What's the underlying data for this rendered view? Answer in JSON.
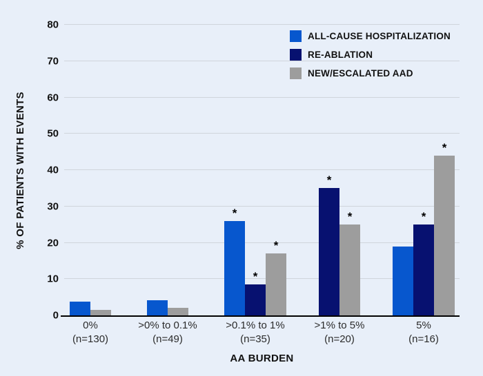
{
  "colors": {
    "background": "#e8eff9",
    "gridline": "#cfd4db",
    "axis_line": "#000000",
    "text": "#111111"
  },
  "chart_data": {
    "type": "bar",
    "title": "",
    "xlabel": "AA BURDEN",
    "ylabel": "% OF PATIENTS WITH EVENTS",
    "ylim": [
      0,
      80
    ],
    "yticks": [
      0,
      10,
      20,
      30,
      40,
      50,
      60,
      70,
      80
    ],
    "grid": "horizontal",
    "legend_position": "top-right-inside",
    "annotation_marker": "*",
    "categories": [
      {
        "range": "0%",
        "n": "(n=130)"
      },
      {
        "range": ">0% to 0.1%",
        "n": "(n=49)"
      },
      {
        "range": ">0.1% to 1%",
        "n": "(n=35)"
      },
      {
        "range": ">1% to 5%",
        "n": "(n=20)"
      },
      {
        "range": "5%",
        "n": "(n=16)"
      }
    ],
    "series": [
      {
        "name": "ALL-CAUSE HOSPITALIZATION",
        "color": "#0757ce",
        "values": [
          3.8,
          4.1,
          26,
          0,
          19
        ],
        "significant": [
          false,
          false,
          true,
          false,
          false
        ]
      },
      {
        "name": "RE-ABLATION",
        "color": "#071170",
        "values": [
          0,
          0,
          8.6,
          35,
          25
        ],
        "significant": [
          false,
          false,
          true,
          true,
          true
        ]
      },
      {
        "name": "NEW/ESCALATED AAD",
        "color": "#9d9d9d",
        "values": [
          1.5,
          2,
          17.1,
          25,
          44
        ],
        "significant": [
          false,
          false,
          true,
          true,
          true
        ]
      }
    ]
  }
}
